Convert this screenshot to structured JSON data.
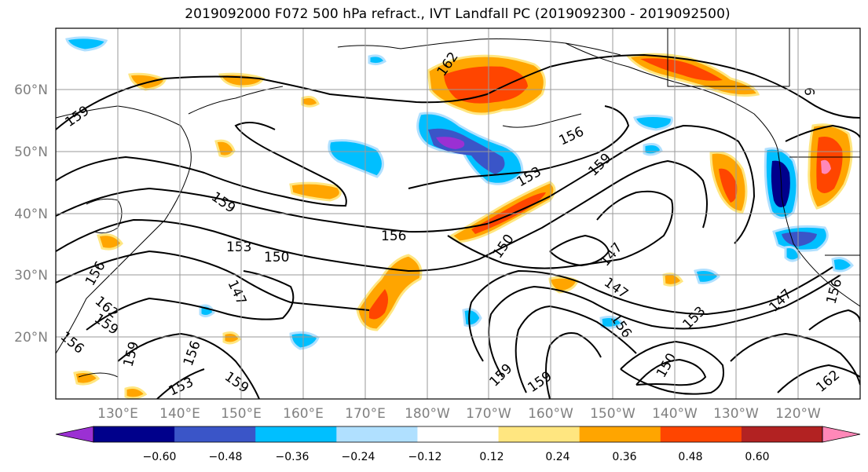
{
  "title": "2019092000 F072 500 hPa refract., IVT Landfall PC (2019092300 - 2019092500)",
  "map": {
    "lat_labels": [
      "60°N",
      "50°N",
      "40°N",
      "30°N",
      "20°N"
    ],
    "lon_labels": [
      "130°E",
      "140°E",
      "150°E",
      "160°E",
      "170°E",
      "180°W",
      "170°W",
      "160°W",
      "150°W",
      "140°W",
      "130°W",
      "120°W"
    ],
    "contour_labels": [
      {
        "text": "159"
      },
      {
        "text": "162"
      },
      {
        "text": "156"
      },
      {
        "text": "159"
      },
      {
        "text": "153"
      },
      {
        "text": "159"
      },
      {
        "text": "156"
      },
      {
        "text": "150"
      },
      {
        "text": "153"
      },
      {
        "text": "150"
      },
      {
        "text": "147"
      },
      {
        "text": "147"
      },
      {
        "text": "147"
      },
      {
        "text": "147"
      },
      {
        "text": "156"
      },
      {
        "text": "153"
      },
      {
        "text": "150"
      },
      {
        "text": "159"
      },
      {
        "text": "159"
      },
      {
        "text": "162"
      },
      {
        "text": "156"
      },
      {
        "text": "159"
      },
      {
        "text": "153"
      },
      {
        "text": "156"
      },
      {
        "text": "159"
      },
      {
        "text": "162"
      },
      {
        "text": "156"
      },
      {
        "text": "159"
      },
      {
        "text": "156"
      },
      {
        "text": "9"
      }
    ]
  },
  "colorbar": {
    "ticks": [
      "−0.60",
      "−0.48",
      "−0.36",
      "−0.24",
      "−0.12",
      "0.12",
      "0.24",
      "0.36",
      "0.48",
      "0.60"
    ],
    "colors": [
      "#9b30d3",
      "#00008b",
      "#3a55c8",
      "#00bfff",
      "#b0e0ff",
      "#ffffff",
      "#ffe680",
      "#ffa500",
      "#ff4500",
      "#b22222",
      "#ff88b8"
    ]
  }
}
